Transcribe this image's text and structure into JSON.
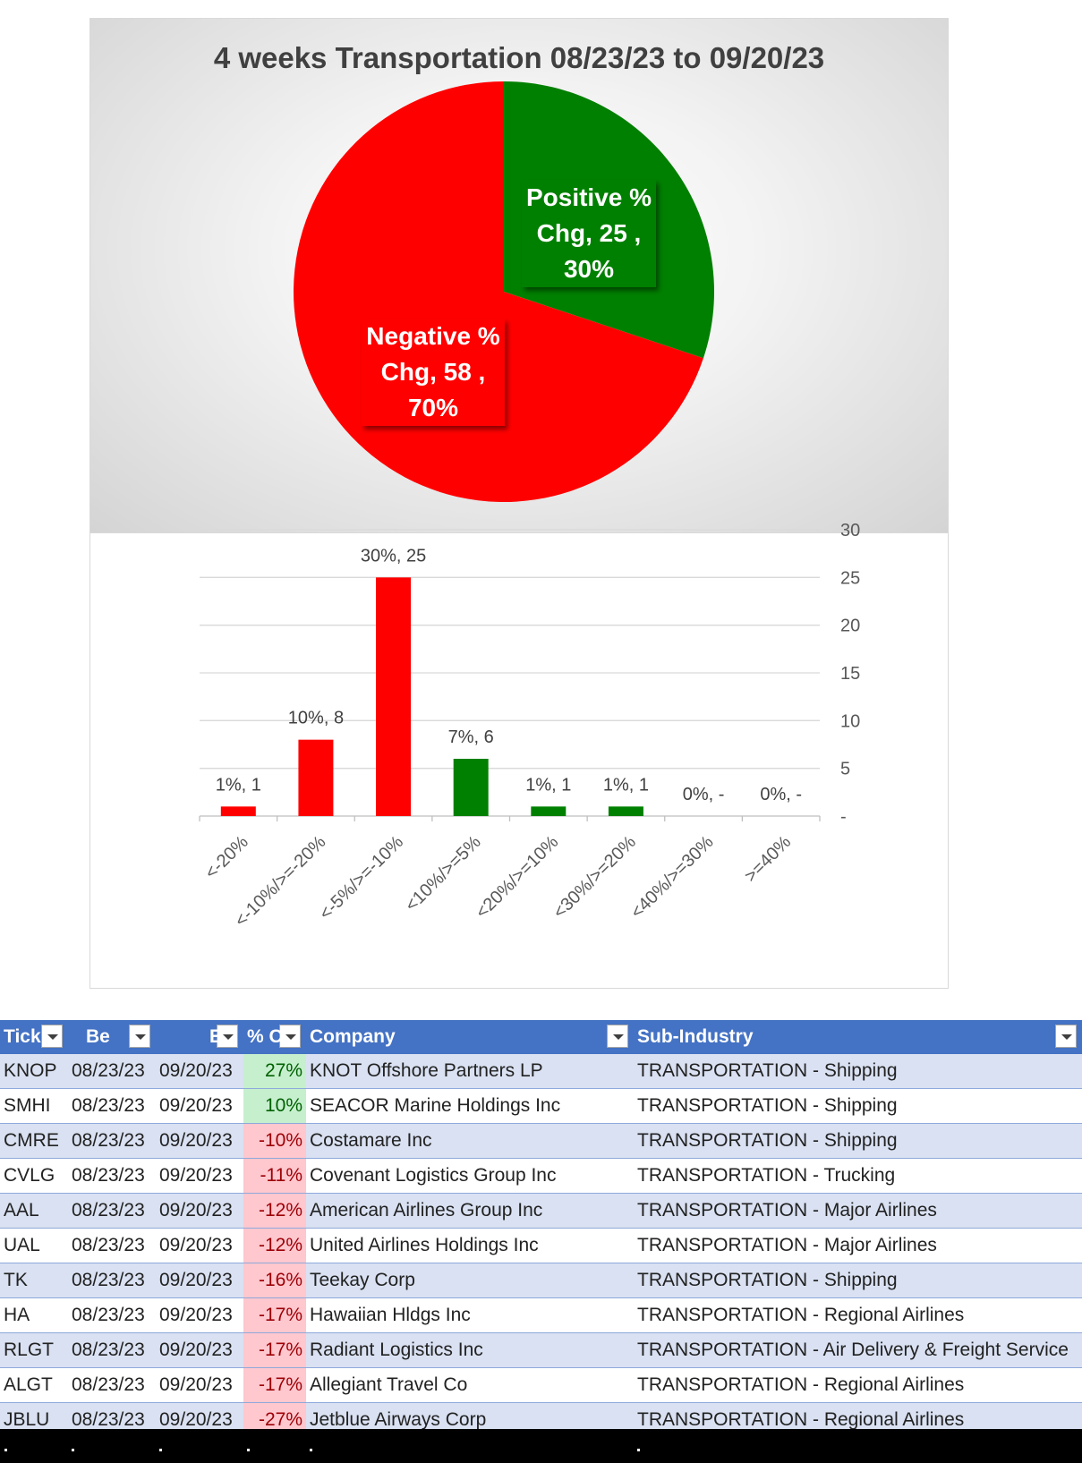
{
  "chart_data": [
    {
      "type": "pie",
      "title": "4 weeks Transportation 08/23/23 to 09/20/23",
      "slices": [
        {
          "name": "Positive % Chg",
          "value": 25,
          "percent": "30%",
          "color": "#008000",
          "label_lines": [
            "Positive %",
            "Chg,  25 ,",
            "30%"
          ]
        },
        {
          "name": "Negative % Chg",
          "value": 58,
          "percent": "70%",
          "color": "#ff0000",
          "label_lines": [
            "Negative %",
            "Chg,  58 ,",
            "70%"
          ]
        }
      ]
    },
    {
      "type": "bar",
      "title": "",
      "categories": [
        "<-20%",
        "<-10%/>=-20%",
        "<-5%/>=-10%",
        "<10%/>=5%",
        "<20%/>=10%",
        "<30%/>=20%",
        "<40%/>=30%",
        ">=40%"
      ],
      "values": [
        1,
        8,
        25,
        6,
        1,
        1,
        0,
        0
      ],
      "data_labels": [
        "1%,  1",
        "10%,  8",
        "30%,  25",
        "7%,  6",
        "1%,  1",
        "1%,  1",
        "0%,  -",
        "0%,  -"
      ],
      "colors": [
        "#ff0000",
        "#ff0000",
        "#ff0000",
        "#008000",
        "#008000",
        "#008000",
        "#008000",
        "#008000"
      ],
      "ylim": [
        0,
        30
      ],
      "y_ticks": [
        0,
        5,
        10,
        15,
        20,
        25,
        30
      ],
      "y_tick_labels": [
        "-",
        "5",
        "10",
        "15",
        "20",
        "25",
        "30"
      ],
      "y_axis_side": "right",
      "grid": true
    }
  ],
  "table": {
    "headers": [
      "Tick",
      "Be",
      "E",
      "% C",
      "Company",
      "Sub-Industry"
    ],
    "rows": [
      {
        "ticker": "KNOP",
        "begin": "08/23/23",
        "end": "09/20/23",
        "pct": "27%",
        "company": "KNOT Offshore Partners LP",
        "sub": "TRANSPORTATION - Shipping"
      },
      {
        "ticker": "SMHI",
        "begin": "08/23/23",
        "end": "09/20/23",
        "pct": "10%",
        "company": "SEACOR Marine Holdings Inc",
        "sub": "TRANSPORTATION - Shipping"
      },
      {
        "ticker": "CMRE",
        "begin": "08/23/23",
        "end": "09/20/23",
        "pct": "-10%",
        "company": "Costamare Inc",
        "sub": "TRANSPORTATION - Shipping"
      },
      {
        "ticker": "CVLG",
        "begin": "08/23/23",
        "end": "09/20/23",
        "pct": "-11%",
        "company": "Covenant Logistics Group Inc",
        "sub": "TRANSPORTATION - Trucking"
      },
      {
        "ticker": "AAL",
        "begin": "08/23/23",
        "end": "09/20/23",
        "pct": "-12%",
        "company": "American Airlines Group Inc",
        "sub": "TRANSPORTATION - Major Airlines"
      },
      {
        "ticker": "UAL",
        "begin": "08/23/23",
        "end": "09/20/23",
        "pct": "-12%",
        "company": "United Airlines Holdings Inc",
        "sub": "TRANSPORTATION - Major Airlines"
      },
      {
        "ticker": "TK",
        "begin": "08/23/23",
        "end": "09/20/23",
        "pct": "-16%",
        "company": "Teekay Corp",
        "sub": "TRANSPORTATION - Shipping"
      },
      {
        "ticker": "HA",
        "begin": "08/23/23",
        "end": "09/20/23",
        "pct": "-17%",
        "company": "Hawaiian Hldgs Inc",
        "sub": "TRANSPORTATION - Regional Airlines"
      },
      {
        "ticker": "RLGT",
        "begin": "08/23/23",
        "end": "09/20/23",
        "pct": "-17%",
        "company": "Radiant Logistics Inc",
        "sub": "TRANSPORTATION - Air Delivery & Freight Service"
      },
      {
        "ticker": "ALGT",
        "begin": "08/23/23",
        "end": "09/20/23",
        "pct": "-17%",
        "company": "Allegiant Travel Co",
        "sub": "TRANSPORTATION - Regional Airlines"
      },
      {
        "ticker": "JBLU",
        "begin": "08/23/23",
        "end": "09/20/23",
        "pct": "-27%",
        "company": "Jetblue Airways Corp",
        "sub": "TRANSPORTATION - Regional Airlines"
      }
    ]
  },
  "colors": {
    "header_blue": "#4472c4",
    "band_blue": "#d9e1f2",
    "pos_fill": "#c6efce",
    "neg_fill": "#ffc7ce"
  }
}
